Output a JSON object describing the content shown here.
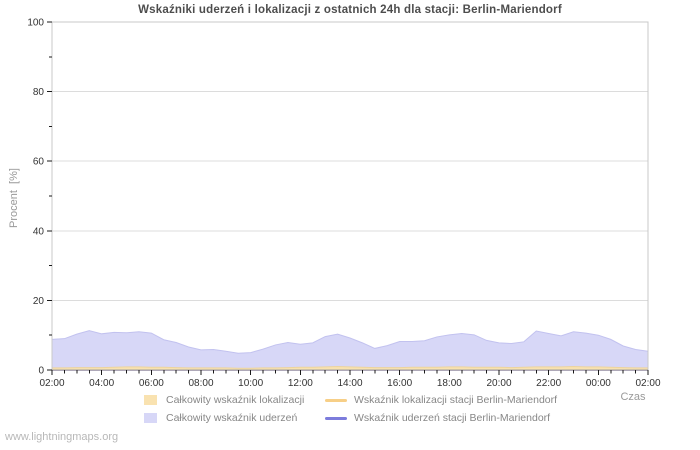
{
  "watermark": "www.lightningmaps.org",
  "legend": {
    "items": [
      {
        "id": "total-locations",
        "label": "Całkowity wskaźnik lokalizacji",
        "type": "area-swatch",
        "color": "#f9e2b0"
      },
      {
        "id": "station-locations",
        "label": "Wskaźnik lokalizacji stacji Berlin-Mariendorf",
        "type": "line-swatch",
        "color": "#f7cf87"
      },
      {
        "id": "total-strikes",
        "label": "Całkowity wskaźnik uderzeń",
        "type": "area-swatch",
        "color": "#d7d7f7"
      },
      {
        "id": "station-strikes",
        "label": "Wskaźnik uderzeń stacji Berlin-Mariendorf",
        "type": "line-swatch",
        "color": "#7c7cdc"
      }
    ]
  },
  "chart_data": {
    "type": "area",
    "title": "Wskaźniki uderzeń i lokalizacji z ostatnich 24h dla stacji: Berlin-Mariendorf",
    "xlabel": "Czas",
    "ylabel": "Procent  [%]",
    "ylim": [
      0,
      100
    ],
    "y_major_ticks": [
      0,
      20,
      40,
      60,
      80,
      100
    ],
    "y_minor_step": 10,
    "grid": "horizontal solid lines at 20/40/60/80",
    "legend_position": "bottom",
    "x_tick_label_every": 4,
    "x": [
      "02:00",
      "02:30",
      "03:00",
      "03:30",
      "04:00",
      "04:30",
      "05:00",
      "05:30",
      "06:00",
      "06:30",
      "07:00",
      "07:30",
      "08:00",
      "08:30",
      "09:00",
      "09:30",
      "10:00",
      "10:30",
      "11:00",
      "11:30",
      "12:00",
      "12:30",
      "13:00",
      "13:30",
      "14:00",
      "14:30",
      "15:00",
      "15:30",
      "16:00",
      "16:30",
      "17:00",
      "17:30",
      "18:00",
      "18:30",
      "19:00",
      "19:30",
      "20:00",
      "20:30",
      "21:00",
      "21:30",
      "22:00",
      "22:30",
      "23:00",
      "23:30",
      "00:00",
      "00:30",
      "01:00",
      "01:30",
      "02:00"
    ],
    "series": [
      {
        "name": "Całkowity wskaźnik uderzeń",
        "kind": "area",
        "color": "#d7d7f7",
        "edge": "#c2c2ef",
        "values": [
          8.8,
          9.0,
          10.3,
          11.3,
          10.4,
          10.8,
          10.7,
          11.0,
          10.6,
          8.7,
          7.9,
          6.6,
          5.8,
          5.9,
          5.4,
          4.8,
          5.0,
          6.0,
          7.2,
          7.9,
          7.4,
          7.8,
          9.6,
          10.3,
          9.2,
          7.8,
          6.2,
          7.0,
          8.2,
          8.2,
          8.4,
          9.5,
          10.1,
          10.5,
          10.1,
          8.5,
          7.8,
          7.6,
          8.1,
          11.2,
          10.5,
          9.8,
          11.0,
          10.6,
          10.0,
          8.8,
          6.9,
          5.9,
          5.4
        ]
      },
      {
        "name": "Całkowity wskaźnik lokalizacji",
        "kind": "area",
        "color": "#f9e2b0",
        "edge": "#ecd4a0",
        "values": [
          0.6,
          0.6,
          0.7,
          0.7,
          0.7,
          0.8,
          0.9,
          0.9,
          0.8,
          0.8,
          0.7,
          0.6,
          0.6,
          0.6,
          0.6,
          0.5,
          0.5,
          0.6,
          0.6,
          0.7,
          0.8,
          0.8,
          0.9,
          1.0,
          0.9,
          0.8,
          0.7,
          0.7,
          0.7,
          0.8,
          0.8,
          0.8,
          0.9,
          0.9,
          0.8,
          0.8,
          0.8,
          0.7,
          0.8,
          0.9,
          0.9,
          0.9,
          1.0,
          0.9,
          0.9,
          0.8,
          0.7,
          0.6,
          0.6
        ]
      },
      {
        "name": "Wskaźnik lokalizacji stacji Berlin-Mariendorf",
        "kind": "line",
        "color": "#f7cf87",
        "values_constant": 0
      },
      {
        "name": "Wskaźnik uderzeń stacji Berlin-Mariendorf",
        "kind": "line",
        "color": "#7c7cdc",
        "values_constant": 0
      }
    ]
  },
  "style_colors": {
    "title": "#4d4d4d",
    "tick_label": "#333333",
    "axis_frame": "#c8c8c8",
    "baseline": "#a0a0a0",
    "gridline": "#dcdcdc",
    "tick_mark": "#1a1a1a",
    "muted_text": "#999999",
    "legend_text": "#878787",
    "watermark_text": "#b8b8b8"
  }
}
